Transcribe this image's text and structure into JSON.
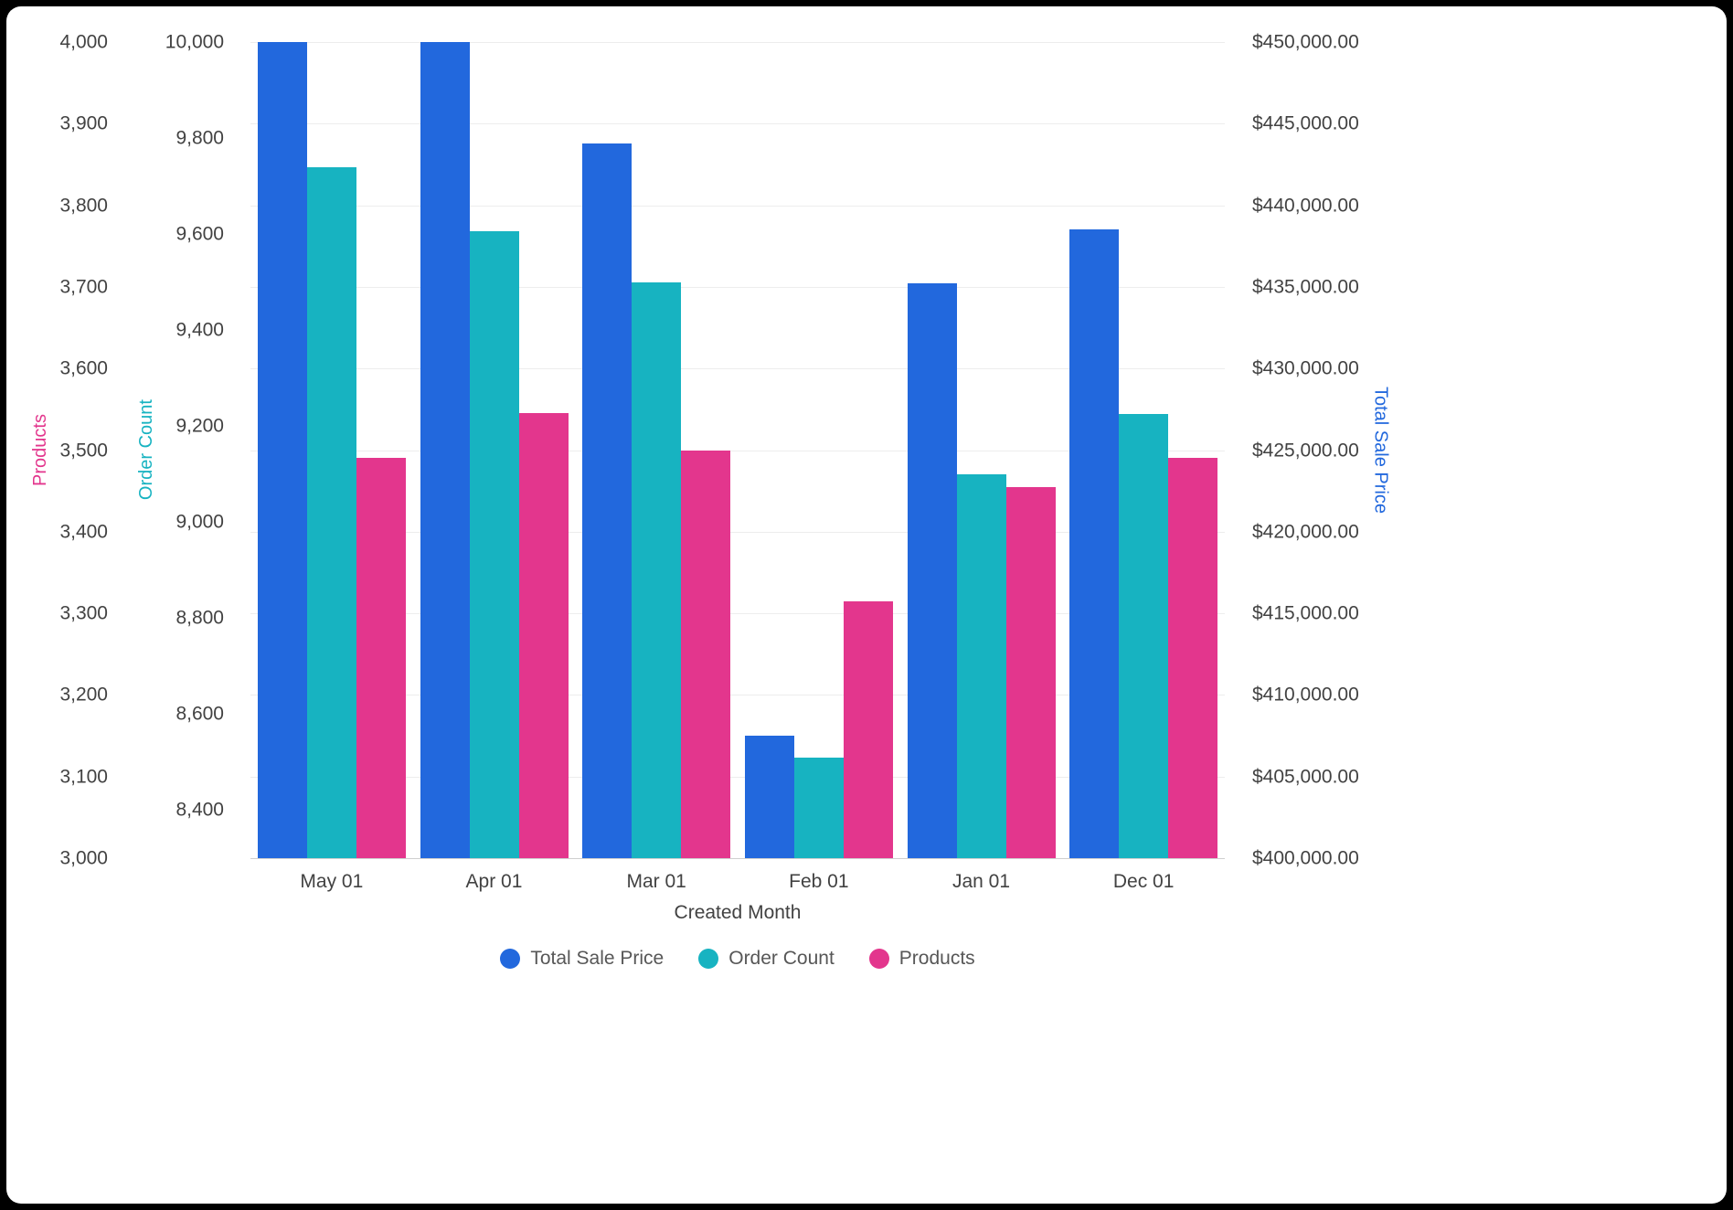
{
  "chart_data": {
    "type": "bar",
    "title": "",
    "categories": [
      "May 01",
      "Apr 01",
      "Mar 01",
      "Feb 01",
      "Jan 01",
      "Dec 01"
    ],
    "series": [
      {
        "name": "Total Sale Price",
        "axis": "price",
        "color": "#2268DD",
        "values": [
          450000,
          450000,
          443800,
          407500,
          435200,
          438500
        ]
      },
      {
        "name": "Order Count",
        "axis": "orders",
        "color": "#17B3C1",
        "values": [
          9740,
          9605,
          9500,
          8510,
          9100,
          9225
        ]
      },
      {
        "name": "Products",
        "axis": "products",
        "color": "#E3368D",
        "values": [
          3490,
          3545,
          3500,
          3315,
          3455,
          3490
        ]
      }
    ],
    "x_axis": {
      "title": "Created Month"
    },
    "axes": {
      "products": {
        "title": "Products",
        "color": "#E3368D",
        "min": 3000,
        "max": 4000,
        "ticks": [
          3000,
          3100,
          3200,
          3300,
          3400,
          3500,
          3600,
          3700,
          3800,
          3900,
          4000
        ],
        "format": "number"
      },
      "orders": {
        "title": "Order Count",
        "color": "#17B3C1",
        "min": 8300,
        "max": 10000,
        "ticks": [
          8400,
          8600,
          8800,
          9000,
          9200,
          9400,
          9600,
          9800,
          10000
        ],
        "format": "number"
      },
      "price": {
        "title": "Total Sale Price",
        "color": "#2268DD",
        "min": 400000,
        "max": 450000,
        "ticks": [
          400000,
          405000,
          410000,
          415000,
          420000,
          425000,
          430000,
          435000,
          440000,
          445000,
          450000
        ],
        "format": "currency"
      }
    },
    "legend": [
      "Total Sale Price",
      "Order Count",
      "Products"
    ],
    "grid": true,
    "legend_position": "bottom"
  }
}
